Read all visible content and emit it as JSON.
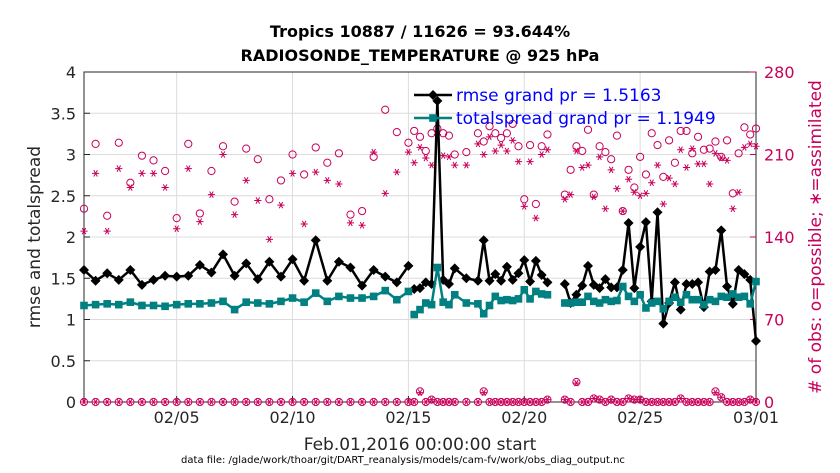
{
  "chart_data": {
    "type": "line",
    "title_line1": "Tropics 10887 / 11626 = 93.644%",
    "title_line2": "RADIOSONDE_TEMPERATURE @ 925 hPa",
    "xlabel": "Feb.01,2016 00:00:00 start",
    "ylabel": "rmse and totalspread",
    "ylabel_right": "# of obs: o=possible; ∗=assimilated",
    "footer": "data file: /glade/work/thoar/git/DART_reanalysis/models/cam-fv/work/obs_diag_output.nc",
    "xlim": [
      1,
      30
    ],
    "ylim": [
      0,
      4
    ],
    "ylim_right": [
      0,
      280
    ],
    "x_ticks": [
      5,
      10,
      15,
      20,
      25,
      30
    ],
    "x_tick_labels": [
      "02/05",
      "02/10",
      "02/15",
      "02/20",
      "02/25",
      "03/01"
    ],
    "y_ticks": [
      0,
      0.5,
      1,
      1.5,
      2,
      2.5,
      3,
      3.5,
      4
    ],
    "y_tick_labels": [
      "0",
      "0.5",
      "1",
      "1.5",
      "2",
      "2.5",
      "3",
      "3.5",
      "4"
    ],
    "y_right_ticks": [
      0,
      70,
      140,
      210,
      280
    ],
    "y_right_tick_labels": [
      "0",
      "70",
      "140",
      "210",
      "280"
    ],
    "legend": [
      {
        "label": "rmse grand pr = 1.5163",
        "color": "#000000",
        "marker": "diamond"
      },
      {
        "label": "totalspread grand pr = 1.1949",
        "color": "#008080",
        "marker": "square"
      }
    ],
    "series": [
      {
        "name": "rmse",
        "color": "#000000",
        "x": [
          1.0,
          1.5,
          2.0,
          2.5,
          3.0,
          3.5,
          4.0,
          4.5,
          5.0,
          5.5,
          6.0,
          6.5,
          7.0,
          7.5,
          8.0,
          8.5,
          9.0,
          9.5,
          10.0,
          10.5,
          11.0,
          11.5,
          12.0,
          12.5,
          13.0,
          13.5,
          14.0,
          14.5,
          15.0
        ],
        "y": [
          1.6,
          1.47,
          1.56,
          1.48,
          1.6,
          1.42,
          1.48,
          1.53,
          1.52,
          1.53,
          1.66,
          1.57,
          1.79,
          1.53,
          1.68,
          1.49,
          1.7,
          1.52,
          1.73,
          1.47,
          1.96,
          1.47,
          1.7,
          1.63,
          1.41,
          1.6,
          1.52,
          1.45,
          1.65
        ]
      },
      {
        "name": "rmse",
        "color": "#000000",
        "x": [
          15.25,
          15.5,
          15.75,
          16.0,
          16.25,
          16.5,
          16.75,
          17.0,
          17.5,
          18.0,
          18.25,
          18.5,
          18.75,
          19.0,
          19.25,
          19.5,
          19.75,
          20.0,
          20.25,
          20.5,
          20.75,
          21.0
        ],
        "y": [
          1.37,
          1.38,
          1.45,
          1.43,
          3.65,
          1.48,
          1.43,
          1.62,
          1.5,
          1.47,
          1.96,
          1.47,
          1.55,
          1.47,
          1.64,
          1.48,
          1.56,
          1.72,
          1.46,
          1.71,
          1.54,
          1.45
        ]
      },
      {
        "name": "rmse",
        "color": "#000000",
        "x": [
          21.75,
          22.0,
          22.25,
          22.5,
          22.75,
          23.0,
          23.25,
          23.5,
          23.75,
          24.0,
          24.25,
          24.5,
          24.75,
          25.0,
          25.25,
          25.5,
          25.75,
          26.0,
          26.25,
          26.5,
          26.75,
          27.0,
          27.25,
          27.5,
          27.75,
          28.0,
          28.25,
          28.5,
          28.75,
          29.0,
          29.25,
          29.5,
          29.75,
          30.0
        ],
        "y": [
          1.43,
          1.2,
          1.3,
          1.41,
          1.65,
          1.42,
          1.38,
          1.49,
          1.39,
          1.39,
          1.6,
          2.17,
          1.38,
          1.88,
          2.18,
          1.22,
          2.3,
          0.95,
          1.2,
          1.45,
          1.12,
          1.43,
          1.43,
          1.45,
          1.15,
          1.58,
          1.6,
          2.08,
          1.4,
          1.19,
          1.6,
          1.55,
          1.48,
          0.74
        ]
      },
      {
        "name": "totalspread",
        "color": "#008080",
        "x": [
          1.0,
          1.5,
          2.0,
          2.5,
          3.0,
          3.5,
          4.0,
          4.5,
          5.0,
          5.5,
          6.0,
          6.5,
          7.0,
          7.5,
          8.0,
          8.5,
          9.0,
          9.5,
          10.0,
          10.5,
          11.0,
          11.5,
          12.0,
          12.5,
          13.0,
          13.5,
          14.0,
          14.5,
          15.0
        ],
        "y": [
          1.17,
          1.18,
          1.19,
          1.18,
          1.21,
          1.17,
          1.17,
          1.16,
          1.18,
          1.19,
          1.19,
          1.2,
          1.22,
          1.12,
          1.21,
          1.2,
          1.19,
          1.22,
          1.26,
          1.21,
          1.32,
          1.22,
          1.28,
          1.26,
          1.26,
          1.28,
          1.35,
          1.24,
          1.34
        ]
      },
      {
        "name": "totalspread",
        "color": "#008080",
        "x": [
          15.25,
          15.5,
          15.75,
          16.0,
          16.25,
          16.5,
          16.75,
          17.0,
          17.5,
          18.0,
          18.25,
          18.5,
          18.75,
          19.0,
          19.25,
          19.5,
          19.75,
          20.0,
          20.25,
          20.5,
          20.75,
          21.0
        ],
        "y": [
          1.06,
          1.12,
          1.2,
          1.18,
          1.63,
          1.21,
          1.18,
          1.3,
          1.2,
          1.19,
          1.07,
          1.17,
          1.28,
          1.23,
          1.24,
          1.23,
          1.25,
          1.36,
          1.25,
          1.34,
          1.31,
          1.3
        ]
      },
      {
        "name": "totalspread",
        "color": "#008080",
        "x": [
          21.75,
          22.0,
          22.25,
          22.5,
          22.75,
          23.0,
          23.25,
          23.5,
          23.75,
          24.0,
          24.25,
          24.5,
          24.75,
          25.0,
          25.25,
          25.5,
          25.75,
          26.0,
          26.25,
          26.5,
          26.75,
          27.0,
          27.25,
          27.5,
          27.75,
          28.0,
          28.25,
          28.5,
          28.75,
          29.0,
          29.25,
          29.5,
          29.75,
          30.0
        ],
        "y": [
          1.2,
          1.2,
          1.21,
          1.21,
          1.28,
          1.22,
          1.2,
          1.24,
          1.22,
          1.23,
          1.4,
          1.28,
          1.22,
          1.3,
          1.14,
          1.2,
          1.22,
          1.13,
          1.22,
          1.27,
          1.21,
          1.3,
          1.24,
          1.24,
          1.18,
          1.24,
          1.22,
          1.28,
          1.27,
          1.31,
          1.27,
          1.28,
          1.19,
          1.46
        ]
      }
    ],
    "obs_possible": {
      "color": "#c8005a",
      "marker": "circle",
      "x": [
        1.0,
        1.5,
        2.0,
        2.5,
        3.0,
        3.5,
        4.0,
        4.5,
        5.0,
        5.5,
        6.0,
        6.5,
        7.0,
        7.5,
        8.0,
        8.5,
        9.0,
        9.5,
        10.0,
        10.5,
        11.0,
        11.5,
        12.0,
        12.5,
        13.0,
        13.5,
        14.0,
        14.5,
        15.0,
        15.25,
        15.5,
        15.75,
        16.0,
        16.25,
        16.5,
        16.75,
        17.0,
        17.5,
        18.0,
        18.25,
        18.5,
        18.75,
        19.0,
        19.25,
        19.5,
        19.75,
        20.0,
        20.25,
        20.5,
        20.75,
        21.0,
        21.75,
        22.0,
        22.25,
        22.5,
        22.75,
        23.0,
        23.25,
        23.5,
        23.75,
        24.0,
        24.25,
        24.5,
        24.75,
        25.0,
        25.25,
        25.5,
        25.75,
        26.0,
        26.25,
        26.5,
        26.75,
        27.0,
        27.25,
        27.5,
        27.75,
        28.0,
        28.25,
        28.5,
        28.75,
        29.0,
        29.25,
        29.5,
        29.75,
        30.0
      ],
      "y": [
        164,
        219,
        158,
        220,
        186,
        209,
        205,
        196,
        156,
        219,
        160,
        196,
        217,
        170,
        215,
        206,
        172,
        188,
        210,
        193,
        216,
        203,
        211,
        159,
        162,
        208,
        248,
        229,
        220,
        230,
        225,
        213,
        228,
        232,
        228,
        226,
        210,
        212,
        228,
        221,
        234,
        228,
        224,
        228,
        236,
        217,
        172,
        218,
        168,
        217,
        227,
        176,
        197,
        217,
        213,
        231,
        176,
        217,
        212,
        206,
        226,
        162,
        197,
        182,
        208,
        193,
        228,
        218,
        191,
        222,
        203,
        230,
        230,
        211,
        225,
        214,
        215,
        221,
        208,
        222,
        177,
        211,
        233,
        227,
        232
      ]
    },
    "obs_assimilated": {
      "color": "#c8005a",
      "marker": "asterisk",
      "x": [
        1.0,
        1.5,
        2.0,
        2.5,
        3.0,
        3.5,
        4.0,
        4.5,
        5.0,
        5.5,
        6.0,
        6.5,
        7.0,
        7.5,
        8.0,
        8.5,
        9.0,
        9.5,
        10.0,
        10.5,
        11.0,
        11.5,
        12.0,
        12.5,
        13.0,
        13.5,
        14.0,
        14.5,
        15.0,
        15.25,
        15.5,
        15.75,
        16.0,
        16.25,
        16.5,
        16.75,
        17.0,
        17.5,
        18.0,
        18.25,
        18.5,
        18.75,
        19.0,
        19.25,
        19.5,
        19.75,
        20.0,
        20.25,
        20.5,
        20.75,
        21.0,
        21.75,
        22.0,
        22.25,
        22.5,
        22.75,
        23.0,
        23.25,
        23.5,
        23.75,
        24.0,
        24.25,
        24.5,
        24.75,
        25.0,
        25.25,
        25.5,
        25.75,
        26.0,
        26.25,
        26.5,
        26.75,
        27.0,
        27.25,
        27.5,
        27.75,
        28.0,
        28.25,
        28.5,
        28.75,
        29.0,
        29.25,
        29.5,
        29.75,
        30.0
      ],
      "y": [
        145,
        194,
        145,
        198,
        182,
        194,
        194,
        182,
        147,
        198,
        153,
        176,
        210,
        159,
        188,
        171,
        138,
        167,
        194,
        151,
        195,
        188,
        185,
        152,
        150,
        212,
        177,
        195,
        212,
        203,
        216,
        207,
        201,
        227,
        209,
        208,
        201,
        201,
        219,
        210,
        225,
        213,
        218,
        213,
        222,
        204,
        166,
        204,
        156,
        210,
        214,
        172,
        176,
        213,
        199,
        201,
        174,
        208,
        164,
        197,
        181,
        162,
        189,
        178,
        175,
        177,
        186,
        201,
        168,
        190,
        185,
        214,
        199,
        215,
        202,
        202,
        185,
        211,
        207,
        205,
        164,
        178,
        216,
        219,
        217
      ]
    },
    "obs_low_possible": {
      "color": "#c8005a",
      "marker": "circle",
      "x": [
        1.0,
        1.5,
        2.0,
        2.5,
        3.0,
        3.5,
        4.0,
        4.5,
        5.0,
        5.5,
        6.0,
        6.5,
        7.0,
        7.5,
        8.0,
        8.5,
        9.0,
        9.5,
        10.0,
        10.5,
        11.0,
        11.5,
        12.0,
        12.5,
        13.0,
        13.5,
        14.0,
        14.5,
        15.0,
        15.25,
        15.5,
        15.75,
        16.0,
        16.25,
        16.5,
        16.75,
        17.0,
        17.5,
        18.0,
        18.25,
        18.5,
        18.75,
        19.0,
        19.25,
        19.5,
        19.75,
        20.0,
        20.25,
        20.5,
        20.75,
        21.0,
        21.75,
        22.0,
        22.25,
        22.5,
        22.75,
        23.0,
        23.25,
        23.5,
        23.75,
        24.0,
        24.25,
        24.5,
        24.75,
        25.0,
        25.25,
        25.5,
        25.75,
        26.0,
        26.25,
        26.5,
        26.75,
        27.0,
        27.25,
        27.5,
        27.75,
        28.0,
        28.25,
        28.5,
        28.75,
        29.0,
        29.25,
        29.5,
        29.75,
        30.0
      ],
      "y": [
        0,
        0,
        0,
        0,
        0,
        0,
        0,
        0,
        0,
        0,
        0,
        0,
        0,
        0,
        0,
        0,
        0,
        0,
        0,
        0,
        0,
        0,
        0,
        0,
        0,
        0,
        0,
        0,
        0,
        0,
        9,
        0,
        2,
        0,
        0,
        0,
        0,
        0,
        0,
        9,
        0,
        0,
        0,
        0,
        0,
        0,
        0,
        0,
        0,
        0,
        2,
        2,
        0,
        17,
        0,
        0,
        3,
        2,
        0,
        2,
        0,
        0,
        3,
        2,
        2,
        0,
        0,
        0,
        0,
        0,
        0,
        3,
        0,
        0,
        0,
        0,
        0,
        9,
        4,
        0,
        0,
        0,
        0,
        2,
        0
      ]
    },
    "obs_low_assimilated": {
      "color": "#c8005a",
      "marker": "asterisk",
      "x": [
        1.0,
        1.5,
        2.0,
        2.5,
        3.0,
        3.5,
        4.0,
        4.5,
        5.0,
        5.5,
        6.0,
        6.5,
        7.0,
        7.5,
        8.0,
        8.5,
        9.0,
        9.5,
        10.0,
        10.5,
        11.0,
        11.5,
        12.0,
        12.5,
        13.0,
        13.5,
        14.0,
        14.5,
        15.0,
        15.25,
        15.5,
        15.75,
        16.0,
        16.25,
        16.5,
        16.75,
        17.0,
        17.5,
        18.0,
        18.25,
        18.5,
        18.75,
        19.0,
        19.25,
        19.5,
        19.75,
        20.0,
        20.25,
        20.5,
        20.75,
        21.0,
        21.75,
        22.0,
        22.25,
        22.5,
        22.75,
        23.0,
        23.25,
        23.5,
        23.75,
        24.0,
        24.25,
        24.5,
        24.75,
        25.0,
        25.25,
        25.5,
        25.75,
        26.0,
        26.25,
        26.5,
        26.75,
        27.0,
        27.25,
        27.5,
        27.75,
        28.0,
        28.25,
        28.5,
        28.75,
        29.0,
        29.25,
        29.5,
        29.75,
        30.0
      ],
      "y": [
        0,
        0,
        0,
        0,
        0,
        0,
        0,
        0,
        0,
        0,
        0,
        0,
        0,
        0,
        0,
        0,
        0,
        0,
        0,
        0,
        0,
        0,
        0,
        0,
        0,
        0,
        0,
        0,
        0,
        0,
        8,
        0,
        2,
        0,
        0,
        0,
        0,
        0,
        0,
        8,
        0,
        0,
        0,
        0,
        0,
        0,
        0,
        0,
        0,
        0,
        2,
        2,
        0,
        16,
        0,
        0,
        3,
        2,
        0,
        2,
        0,
        0,
        3,
        2,
        2,
        0,
        0,
        0,
        0,
        0,
        0,
        3,
        0,
        0,
        0,
        0,
        0,
        8,
        4,
        0,
        0,
        0,
        0,
        2,
        0
      ]
    }
  }
}
